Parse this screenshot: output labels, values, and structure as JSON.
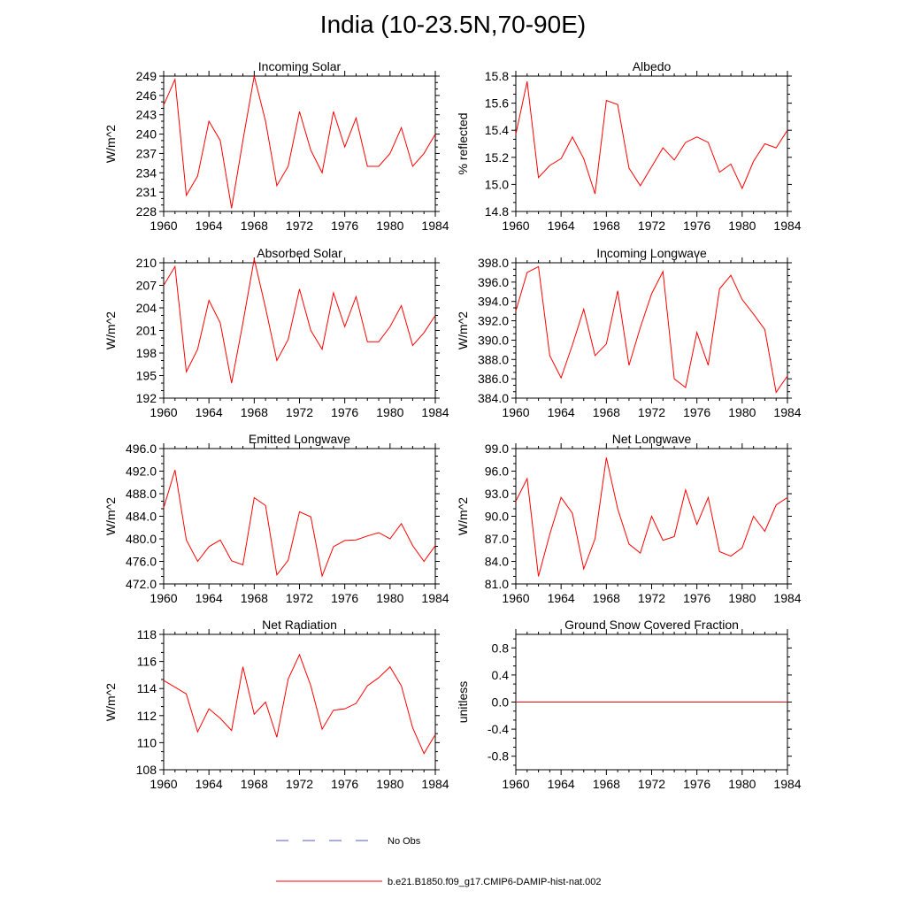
{
  "figure": {
    "title": "India (10-23.5N,70-90E)",
    "series_color": "#ff0000",
    "obs_color": "#5555cc"
  },
  "legend": {
    "items": [
      {
        "label": "No Obs",
        "style": "dashed",
        "color": "#5555cc"
      },
      {
        "label": "b.e21.B1850.f09_g17.CMIP6-DAMIP-hist-nat.002",
        "style": "solid",
        "color": "#ff0000"
      }
    ]
  },
  "chart_data": [
    {
      "type": "line",
      "title": "Incoming Solar",
      "ylabel": "W/m^2",
      "xlim": [
        1960,
        1984
      ],
      "ylim": [
        228,
        249
      ],
      "yticks": [
        "228",
        "231",
        "234",
        "237",
        "240",
        "243",
        "246",
        "249"
      ],
      "xticks": [
        "1960",
        "1964",
        "1968",
        "1972",
        "1976",
        "1980",
        "1984"
      ],
      "x": [
        1960,
        1961,
        1962,
        1963,
        1964,
        1965,
        1966,
        1967,
        1968,
        1969,
        1970,
        1971,
        1972,
        1973,
        1974,
        1975,
        1976,
        1977,
        1978,
        1979,
        1980,
        1981,
        1982,
        1983,
        1984
      ],
      "series": [
        {
          "values": [
            244.5,
            248.5,
            230.5,
            233.5,
            242.0,
            239.0,
            228.5,
            239.0,
            249.0,
            242.0,
            232.0,
            235.0,
            243.5,
            237.5,
            234.0,
            243.5,
            238.0,
            242.5,
            235.0,
            235.0,
            237.0,
            241.0,
            235.0,
            237.0,
            240.0
          ]
        }
      ]
    },
    {
      "type": "line",
      "title": "Albedo",
      "ylabel": "% reflected",
      "xlim": [
        1960,
        1984
      ],
      "ylim": [
        14.8,
        15.8
      ],
      "yticks": [
        "14.8",
        "15.0",
        "15.2",
        "15.4",
        "15.6",
        "15.8"
      ],
      "xticks": [
        "1960",
        "1964",
        "1968",
        "1972",
        "1976",
        "1980",
        "1984"
      ],
      "x": [
        1960,
        1961,
        1962,
        1963,
        1964,
        1965,
        1966,
        1967,
        1968,
        1969,
        1970,
        1971,
        1972,
        1973,
        1974,
        1975,
        1976,
        1977,
        1978,
        1979,
        1980,
        1981,
        1982,
        1983,
        1984
      ],
      "series": [
        {
          "values": [
            15.37,
            15.76,
            15.05,
            15.14,
            15.19,
            15.35,
            15.19,
            14.93,
            15.62,
            15.59,
            15.12,
            14.99,
            15.13,
            15.27,
            15.18,
            15.31,
            15.35,
            15.31,
            15.09,
            15.15,
            14.97,
            15.17,
            15.3,
            15.27,
            15.4
          ]
        }
      ]
    },
    {
      "type": "line",
      "title": "Absorbed Solar",
      "ylabel": "W/m^2",
      "xlim": [
        1960,
        1984
      ],
      "ylim": [
        192,
        210
      ],
      "yticks": [
        "192",
        "195",
        "198",
        "201",
        "204",
        "207",
        "210"
      ],
      "xticks": [
        "1960",
        "1964",
        "1968",
        "1972",
        "1976",
        "1980",
        "1984"
      ],
      "x": [
        1960,
        1961,
        1962,
        1963,
        1964,
        1965,
        1966,
        1967,
        1968,
        1969,
        1970,
        1971,
        1972,
        1973,
        1974,
        1975,
        1976,
        1977,
        1978,
        1979,
        1980,
        1981,
        1982,
        1983,
        1984
      ],
      "series": [
        {
          "values": [
            207.0,
            209.5,
            195.5,
            198.5,
            205.0,
            202.0,
            194.0,
            202.0,
            210.5,
            204.0,
            197.0,
            199.8,
            206.5,
            201.0,
            198.5,
            206.0,
            201.5,
            205.5,
            199.5,
            199.5,
            201.5,
            204.3,
            199.0,
            200.7,
            203.0
          ]
        }
      ]
    },
    {
      "type": "line",
      "title": "Incoming Longwave",
      "ylabel": "W/m^2",
      "xlim": [
        1960,
        1984
      ],
      "ylim": [
        384.0,
        398.0
      ],
      "yticks": [
        "384.0",
        "386.0",
        "388.0",
        "390.0",
        "392.0",
        "394.0",
        "396.0",
        "398.0"
      ],
      "xticks": [
        "1960",
        "1964",
        "1968",
        "1972",
        "1976",
        "1980",
        "1984"
      ],
      "x": [
        1960,
        1961,
        1962,
        1963,
        1964,
        1965,
        1966,
        1967,
        1968,
        1969,
        1970,
        1971,
        1972,
        1973,
        1974,
        1975,
        1976,
        1977,
        1978,
        1979,
        1980,
        1981,
        1982,
        1983,
        1984
      ],
      "series": [
        {
          "values": [
            393.0,
            397.0,
            397.6,
            388.4,
            386.1,
            389.5,
            393.2,
            388.4,
            389.6,
            395.1,
            387.4,
            391.3,
            394.8,
            397.1,
            386.0,
            385.1,
            390.8,
            387.4,
            395.3,
            396.7,
            394.2,
            392.7,
            391.1,
            384.6,
            386.3
          ]
        }
      ]
    },
    {
      "type": "line",
      "title": "Emitted Longwave",
      "ylabel": "W/m^2",
      "xlim": [
        1960,
        1984
      ],
      "ylim": [
        472.0,
        496.0
      ],
      "yticks": [
        "472.0",
        "476.0",
        "480.0",
        "484.0",
        "488.0",
        "492.0",
        "496.0"
      ],
      "xticks": [
        "1960",
        "1964",
        "1968",
        "1972",
        "1976",
        "1980",
        "1984"
      ],
      "x": [
        1960,
        1961,
        1962,
        1963,
        1964,
        1965,
        1966,
        1967,
        1968,
        1969,
        1970,
        1971,
        1972,
        1973,
        1974,
        1975,
        1976,
        1977,
        1978,
        1979,
        1980,
        1981,
        1982,
        1983,
        1984
      ],
      "series": [
        {
          "values": [
            485.5,
            492.2,
            479.8,
            476.0,
            478.6,
            479.8,
            476.1,
            475.4,
            487.3,
            485.9,
            473.6,
            476.2,
            484.8,
            483.9,
            473.4,
            478.6,
            479.7,
            479.8,
            480.5,
            481.1,
            480.0,
            482.7,
            478.8,
            476.0,
            478.8
          ]
        }
      ]
    },
    {
      "type": "line",
      "title": "Net Longwave",
      "ylabel": "W/m^2",
      "xlim": [
        1960,
        1984
      ],
      "ylim": [
        81.0,
        99.0
      ],
      "yticks": [
        "81.0",
        "84.0",
        "87.0",
        "90.0",
        "93.0",
        "96.0",
        "99.0"
      ],
      "xticks": [
        "1960",
        "1964",
        "1968",
        "1972",
        "1976",
        "1980",
        "1984"
      ],
      "x": [
        1960,
        1961,
        1962,
        1963,
        1964,
        1965,
        1966,
        1967,
        1968,
        1969,
        1970,
        1971,
        1972,
        1973,
        1974,
        1975,
        1976,
        1977,
        1978,
        1979,
        1980,
        1981,
        1982,
        1983,
        1984
      ],
      "series": [
        {
          "values": [
            92.0,
            95.0,
            82.0,
            87.6,
            92.5,
            90.4,
            83.0,
            87.0,
            97.8,
            91.0,
            86.3,
            85.1,
            90.0,
            86.8,
            87.3,
            93.5,
            88.9,
            92.5,
            85.3,
            84.7,
            85.8,
            90.0,
            88.0,
            91.5,
            92.5
          ]
        }
      ]
    },
    {
      "type": "line",
      "title": "Net Radiation",
      "ylabel": "W/m^2",
      "xlim": [
        1960,
        1984
      ],
      "ylim": [
        108,
        118
      ],
      "yticks": [
        "108",
        "110",
        "112",
        "114",
        "116",
        "118"
      ],
      "xticks": [
        "1960",
        "1964",
        "1968",
        "1972",
        "1976",
        "1980",
        "1984"
      ],
      "x": [
        1960,
        1961,
        1962,
        1963,
        1964,
        1965,
        1966,
        1967,
        1968,
        1969,
        1970,
        1971,
        1972,
        1973,
        1974,
        1975,
        1976,
        1977,
        1978,
        1979,
        1980,
        1981,
        1982,
        1983,
        1984
      ],
      "series": [
        {
          "values": [
            114.6,
            114.1,
            113.6,
            110.8,
            112.5,
            111.8,
            110.9,
            115.6,
            112.1,
            113.0,
            110.4,
            114.7,
            116.5,
            114.2,
            111.0,
            112.4,
            112.5,
            112.9,
            114.2,
            114.8,
            115.6,
            114.2,
            111.1,
            109.2,
            110.6
          ]
        }
      ]
    },
    {
      "type": "line",
      "title": "Ground Snow Covered Fraction",
      "ylabel": "unitless",
      "xlim": [
        1960,
        1984
      ],
      "ylim": [
        -1.0,
        1.0
      ],
      "yticks": [
        "-0.8",
        "-0.4",
        "0.0",
        "0.4",
        "0.8"
      ],
      "ytick_values": [
        -0.8,
        -0.4,
        0.0,
        0.4,
        0.8
      ],
      "xticks": [
        "1960",
        "1964",
        "1968",
        "1972",
        "1976",
        "1980",
        "1984"
      ],
      "x": [
        1960,
        1984
      ],
      "series": [
        {
          "values": [
            0.0,
            0.0
          ]
        }
      ]
    }
  ]
}
